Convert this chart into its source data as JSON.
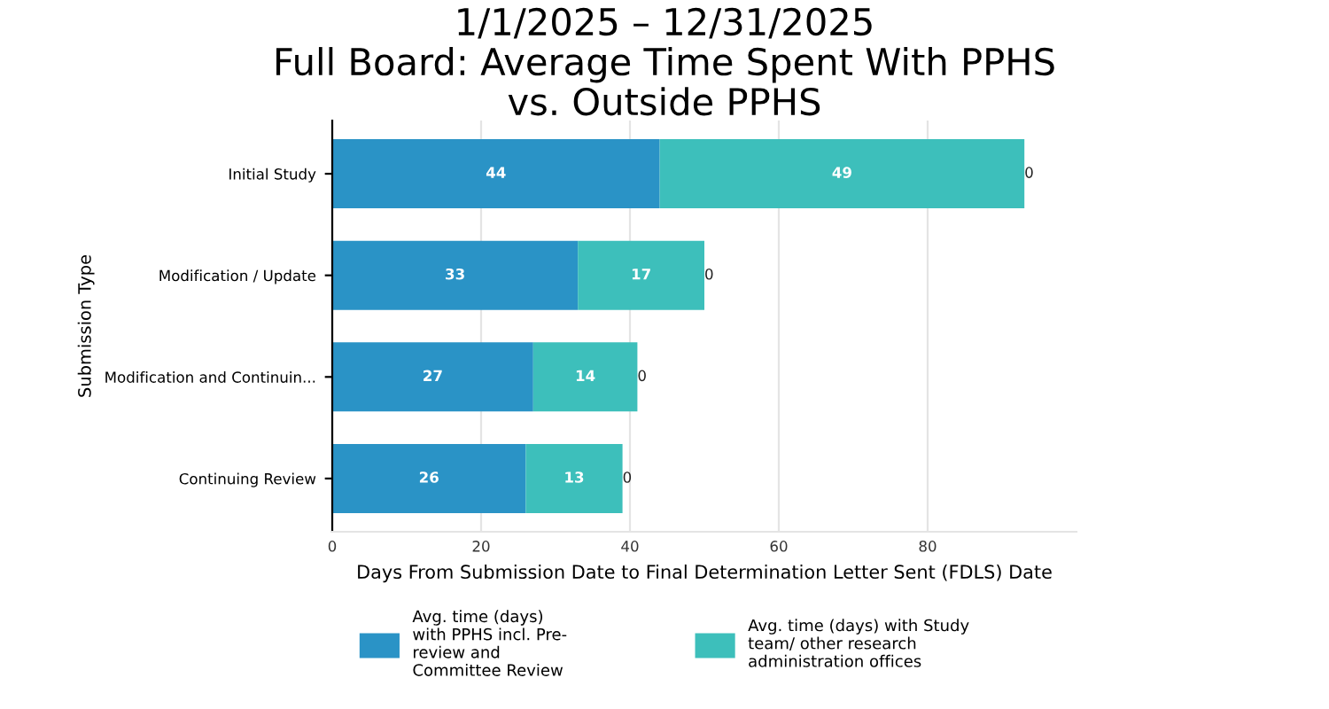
{
  "chart_data": {
    "type": "bar",
    "orientation": "horizontal",
    "stacked": true,
    "title": "1/1/2025 – 12/31/2025\nFull Board: Average Time Spent With PPHS\nvs. Outside PPHS",
    "xlabel": "Days From Submission Date to Final Determination Letter Sent (FDLS) Date",
    "ylabel": "Submission Type",
    "categories": [
      "Initial Study",
      "Modification / Update",
      "Modification and Continuin...",
      "Continuing Review"
    ],
    "series": [
      {
        "name": "Avg. time (days)\nwith PPHS incl. Pre-\nreview and\nCommittee Review",
        "color": "#2a93c6",
        "values": [
          44,
          33,
          27,
          26
        ]
      },
      {
        "name": "Avg. time (days) with Study\nteam/ other research\nadministration offices",
        "color": "#3dbfbb",
        "values": [
          49,
          17,
          14,
          13
        ]
      },
      {
        "color": "#888888",
        "values": [
          0,
          0,
          0,
          0
        ]
      }
    ],
    "xlim": [
      0,
      100
    ],
    "xticks": [
      0,
      20,
      40,
      60,
      80
    ],
    "grid": "x",
    "legend": "bottom",
    "data_labels": true
  }
}
